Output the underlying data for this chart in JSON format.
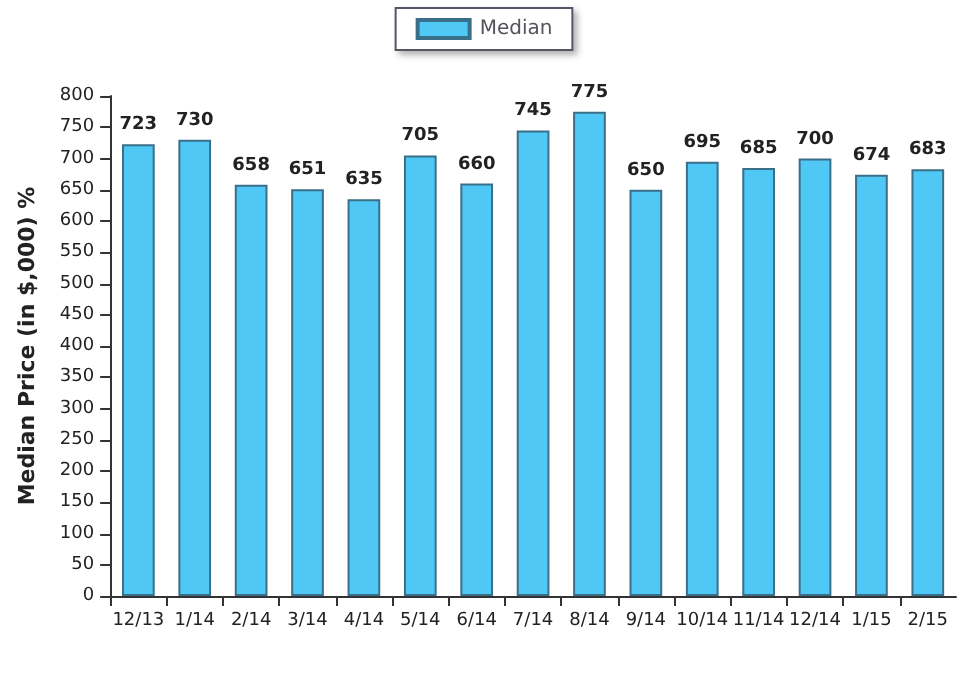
{
  "chart_data": {
    "type": "bar",
    "ylabel": "Median Price (in $,000) %",
    "categories": [
      "12/13",
      "1/14",
      "2/14",
      "3/14",
      "4/14",
      "5/14",
      "6/14",
      "7/14",
      "8/14",
      "9/14",
      "10/14",
      "11/14",
      "12/14",
      "1/15",
      "2/15"
    ],
    "series": [
      {
        "name": "Median",
        "color": "#4fc8f5",
        "values": [
          723,
          730,
          658,
          651,
          635,
          705,
          660,
          745,
          775,
          650,
          695,
          685,
          700,
          674,
          683
        ]
      }
    ],
    "ylim": [
      0,
      800
    ],
    "yticks": [
      0,
      50,
      100,
      150,
      200,
      250,
      300,
      350,
      400,
      450,
      500,
      550,
      600,
      650,
      700,
      750,
      800
    ],
    "data_labels": true,
    "legend": "top",
    "grid": false
  }
}
